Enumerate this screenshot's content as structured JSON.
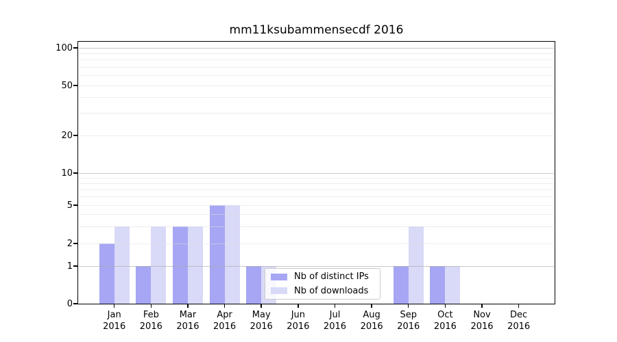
{
  "chart_data": {
    "type": "bar",
    "title": "mm11ksubammensecdf 2016",
    "categories": [
      {
        "month": "Jan",
        "year": "2016"
      },
      {
        "month": "Feb",
        "year": "2016"
      },
      {
        "month": "Mar",
        "year": "2016"
      },
      {
        "month": "Apr",
        "year": "2016"
      },
      {
        "month": "May",
        "year": "2016"
      },
      {
        "month": "Jun",
        "year": "2016"
      },
      {
        "month": "Jul",
        "year": "2016"
      },
      {
        "month": "Aug",
        "year": "2016"
      },
      {
        "month": "Sep",
        "year": "2016"
      },
      {
        "month": "Oct",
        "year": "2016"
      },
      {
        "month": "Nov",
        "year": "2016"
      },
      {
        "month": "Dec",
        "year": "2016"
      }
    ],
    "series": [
      {
        "name": "Nb of distinct IPs",
        "color": "#a6a6f4",
        "values": [
          2,
          1,
          3,
          5,
          1,
          0,
          0,
          0,
          1,
          1,
          0,
          0
        ]
      },
      {
        "name": "Nb of downloads",
        "color": "#d9d9f8",
        "values": [
          3,
          3,
          3,
          5,
          1,
          0,
          0,
          0,
          3,
          1,
          0,
          0
        ]
      }
    ],
    "y_axis": {
      "ticks": [
        0,
        1,
        2,
        5,
        10,
        20,
        50,
        100
      ],
      "minor_ticks": [
        3,
        4,
        6,
        7,
        8,
        9,
        30,
        40,
        60,
        70,
        80,
        90
      ],
      "major_grid_values": [
        1,
        10,
        100
      ],
      "scale": "symlog",
      "ylim": [
        0,
        112
      ]
    },
    "xlabel": "",
    "ylabel": "",
    "grid": true,
    "legend_position": "lower center",
    "colors": {
      "background": "#ffffff",
      "axis": "#000000",
      "text": "#000000",
      "major_grid": "rgba(170,170,170,0.65)",
      "minor_grid": "rgba(222,222,222,0.55)"
    }
  }
}
